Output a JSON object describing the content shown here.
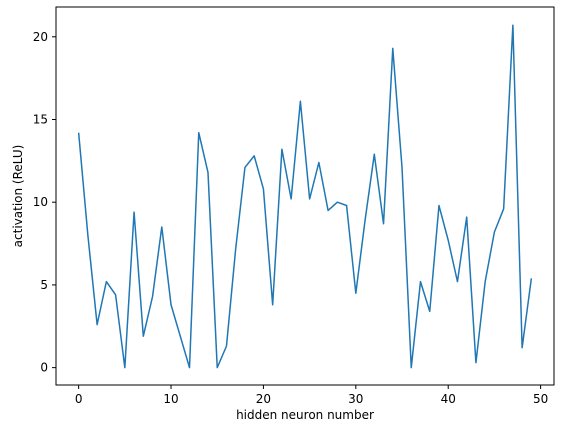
{
  "chart_data": {
    "type": "line",
    "title": "",
    "xlabel": "hidden neuron number",
    "ylabel": "activation (ReLU)",
    "xlim": [
      -2.45,
      51.45
    ],
    "ylim": [
      -1.05,
      21.8
    ],
    "xticks": [
      0,
      10,
      20,
      30,
      40,
      50
    ],
    "yticks": [
      0,
      5,
      10,
      15,
      20
    ],
    "grid": false,
    "legend": "none",
    "series": [
      {
        "color": "#1f77b4",
        "x": [
          0,
          1,
          2,
          3,
          4,
          5,
          6,
          7,
          8,
          9,
          10,
          11,
          12,
          13,
          14,
          15,
          16,
          17,
          18,
          19,
          20,
          21,
          22,
          23,
          24,
          25,
          26,
          27,
          28,
          29,
          30,
          31,
          32,
          33,
          34,
          35,
          36,
          37,
          38,
          39,
          40,
          41,
          42,
          43,
          44,
          45,
          46,
          47,
          48,
          49
        ],
        "y": [
          14.2,
          8.0,
          2.6,
          5.2,
          4.4,
          0.0,
          9.4,
          1.9,
          4.3,
          8.5,
          3.8,
          1.9,
          0.0,
          14.2,
          11.8,
          0.0,
          1.3,
          7.2,
          12.1,
          12.8,
          10.8,
          3.8,
          13.2,
          10.2,
          16.1,
          10.2,
          12.4,
          9.5,
          10.0,
          9.8,
          4.5,
          8.9,
          12.9,
          8.7,
          19.3,
          12.1,
          0.0,
          5.2,
          3.4,
          9.8,
          7.7,
          5.2,
          9.1,
          0.3,
          5.2,
          8.2,
          9.6,
          20.7,
          1.2,
          5.4
        ]
      }
    ]
  }
}
